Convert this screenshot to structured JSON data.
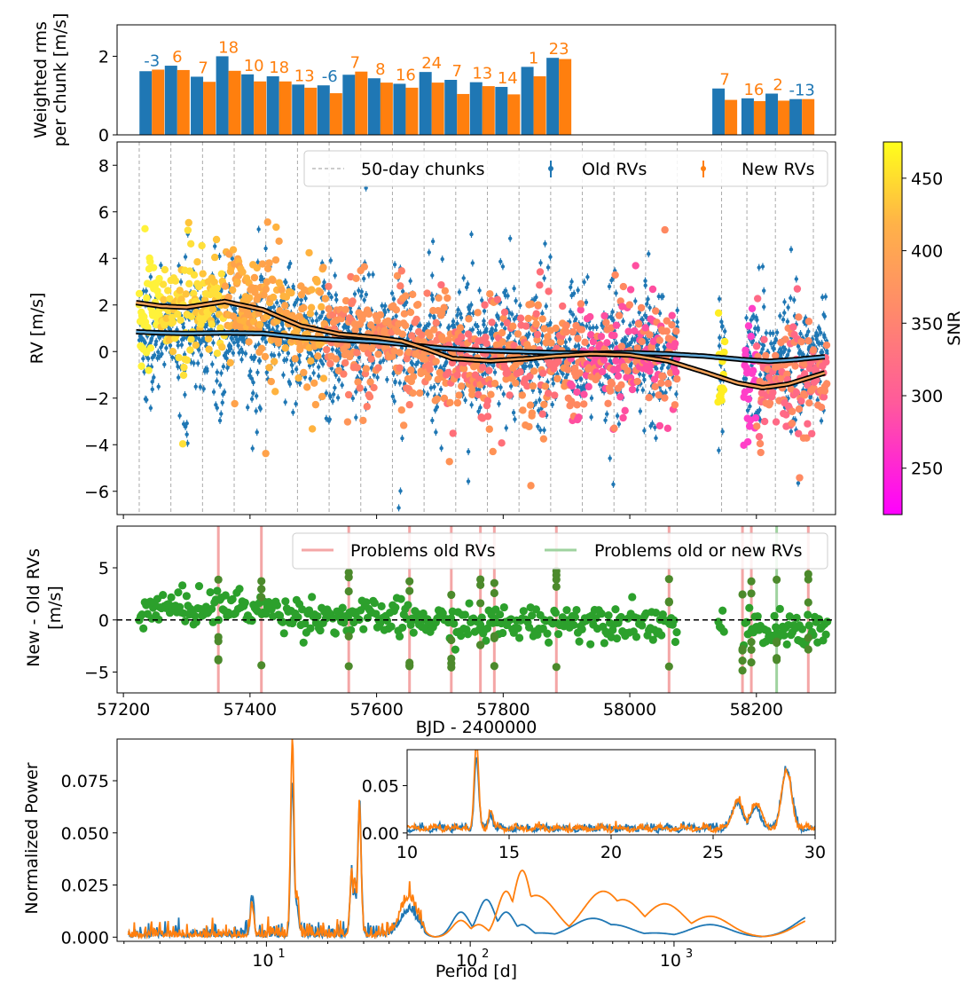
{
  "chart_data": [
    {
      "id": "rms",
      "type": "bar",
      "ylabel": [
        "Weighted rms",
        "per chunk [m/s]"
      ],
      "ylim": [
        0,
        2.8
      ],
      "yticks": [
        0,
        2
      ],
      "xlim": [
        57190,
        58325
      ],
      "series": [
        {
          "name": "Old RVs",
          "color": "#1f77b4"
        },
        {
          "name": "New RVs",
          "color": "#ff7f0e"
        }
      ],
      "chunks": [
        {
          "x": 57245,
          "old": 1.62,
          "new": 1.66,
          "label": "-3",
          "label_color": "#1f77b4"
        },
        {
          "x": 57285,
          "old": 1.76,
          "new": 1.65,
          "label": "6",
          "label_color": "#ff7f0e"
        },
        {
          "x": 57326,
          "old": 1.48,
          "new": 1.35,
          "label": "7",
          "label_color": "#ff7f0e"
        },
        {
          "x": 57366,
          "old": 2.0,
          "new": 1.63,
          "label": "18",
          "label_color": "#ff7f0e"
        },
        {
          "x": 57406,
          "old": 1.54,
          "new": 1.36,
          "label": "10",
          "label_color": "#ff7f0e"
        },
        {
          "x": 57446,
          "old": 1.49,
          "new": 1.36,
          "label": "18",
          "label_color": "#ff7f0e"
        },
        {
          "x": 57486,
          "old": 1.28,
          "new": 1.2,
          "label": "13",
          "label_color": "#ff7f0e"
        },
        {
          "x": 57526,
          "old": 1.26,
          "new": 1.06,
          "label": "-6",
          "label_color": "#1f77b4"
        },
        {
          "x": 57566,
          "old": 1.53,
          "new": 1.61,
          "label": "7",
          "label_color": "#ff7f0e"
        },
        {
          "x": 57606,
          "old": 1.44,
          "new": 1.33,
          "label": "8",
          "label_color": "#ff7f0e"
        },
        {
          "x": 57646,
          "old": 1.3,
          "new": 1.2,
          "label": "16",
          "label_color": "#ff7f0e"
        },
        {
          "x": 57687,
          "old": 1.6,
          "new": 1.33,
          "label": "24",
          "label_color": "#ff7f0e"
        },
        {
          "x": 57727,
          "old": 1.4,
          "new": 1.04,
          "label": "7",
          "label_color": "#ff7f0e"
        },
        {
          "x": 57767,
          "old": 1.34,
          "new": 1.24,
          "label": "13",
          "label_color": "#ff7f0e"
        },
        {
          "x": 57807,
          "old": 1.22,
          "new": 1.03,
          "label": "14",
          "label_color": "#ff7f0e"
        },
        {
          "x": 57848,
          "old": 1.73,
          "new": 1.49,
          "label": "1",
          "label_color": "#ff7f0e"
        },
        {
          "x": 57888,
          "old": 1.96,
          "new": 1.93,
          "label": "23",
          "label_color": "#ff7f0e"
        },
        {
          "x": 58150,
          "old": 1.18,
          "new": 0.89,
          "label": "7",
          "label_color": "#ff7f0e"
        },
        {
          "x": 58196,
          "old": 0.93,
          "new": 0.86,
          "label": "16",
          "label_color": "#ff7f0e"
        },
        {
          "x": 58234,
          "old": 1.05,
          "new": 0.87,
          "label": "2",
          "label_color": "#ff7f0e"
        },
        {
          "x": 58272,
          "old": 0.91,
          "new": 0.91,
          "label": "-13",
          "label_color": "#1f77b4"
        }
      ]
    },
    {
      "id": "rv",
      "type": "scatter",
      "ylabel": "RV [m/s]",
      "xlim": [
        57190,
        58325
      ],
      "ylim": [
        -7,
        9
      ],
      "yticks": [
        -6,
        -4,
        -2,
        0,
        2,
        4,
        6,
        8
      ],
      "legend": [
        "50-day chunks",
        "Old RVs",
        "New RVs"
      ],
      "legend_position": "upper-right",
      "chunk_boundaries": [
        57225,
        57275,
        57325,
        57375,
        57425,
        57475,
        57525,
        57575,
        57625,
        57675,
        57725,
        57775,
        57825,
        57875,
        57925,
        57975,
        58025,
        58075,
        58145,
        58185,
        58230,
        58290
      ],
      "old_trend": [
        [
          57220,
          0.85
        ],
        [
          57260,
          0.8
        ],
        [
          57300,
          0.78
        ],
        [
          57360,
          0.8
        ],
        [
          57420,
          0.78
        ],
        [
          57480,
          0.6
        ],
        [
          57540,
          0.5
        ],
        [
          57600,
          0.42
        ],
        [
          57650,
          0.3
        ],
        [
          57700,
          0.15
        ],
        [
          57760,
          0.05
        ],
        [
          57820,
          0.0
        ],
        [
          57880,
          -0.05
        ],
        [
          57940,
          -0.08
        ],
        [
          58000,
          -0.05
        ],
        [
          58060,
          -0.1
        ],
        [
          58120,
          -0.2
        ],
        [
          58180,
          -0.35
        ],
        [
          58220,
          -0.42
        ],
        [
          58260,
          -0.35
        ],
        [
          58310,
          -0.22
        ]
      ],
      "new_trend": [
        [
          57220,
          2.1
        ],
        [
          57260,
          1.95
        ],
        [
          57300,
          1.9
        ],
        [
          57360,
          2.15
        ],
        [
          57420,
          1.8
        ],
        [
          57480,
          1.1
        ],
        [
          57540,
          0.75
        ],
        [
          57600,
          0.6
        ],
        [
          57640,
          0.45
        ],
        [
          57680,
          0.1
        ],
        [
          57720,
          -0.3
        ],
        [
          57780,
          -0.4
        ],
        [
          57840,
          -0.3
        ],
        [
          57880,
          -0.2
        ],
        [
          57940,
          -0.1
        ],
        [
          58000,
          -0.15
        ],
        [
          58060,
          -0.4
        ],
        [
          58120,
          -0.9
        ],
        [
          58170,
          -1.35
        ],
        [
          58210,
          -1.55
        ],
        [
          58250,
          -1.4
        ],
        [
          58310,
          -0.9
        ]
      ],
      "colorbar": {
        "label": "SNR",
        "ticks": [
          250,
          300,
          350,
          400,
          450
        ],
        "range": [
          218,
          475
        ]
      }
    },
    {
      "id": "diff",
      "type": "scatter",
      "ylabel": [
        "New - Old RVs",
        "[m/s]"
      ],
      "xlabel": "BJD - 2400000",
      "xlim": [
        57190,
        58325
      ],
      "ylim": [
        -7,
        9
      ],
      "yticks": [
        -5,
        0,
        5
      ],
      "xticks": [
        57200,
        57400,
        57600,
        57800,
        58000,
        58200
      ],
      "legend": [
        "Problems old RVs",
        "Problems old or new RVs"
      ],
      "legend_position": "upper-right",
      "problem_old_rvs": [
        57350,
        57418,
        57556,
        57652,
        57718,
        57764,
        57786,
        57884,
        58062,
        58178,
        58192,
        58282
      ],
      "problem_old_or_new_rvs": [
        58232
      ]
    },
    {
      "id": "periodogram",
      "type": "line",
      "ylabel": "Normalized Power",
      "xlabel": "Period [d]",
      "xscale": "log",
      "xlim": [
        1.85,
        6200
      ],
      "ylim": [
        -0.002,
        0.095
      ],
      "yticks": [
        0.0,
        0.025,
        0.05,
        0.075
      ],
      "ytick_labels": [
        "0.000",
        "0.025",
        "0.050",
        "0.075"
      ],
      "xtick_labels": [
        "10",
        "10",
        "10"
      ],
      "xtick_exponents": [
        "1",
        "2",
        "3"
      ],
      "series": [
        {
          "name": "Old RVs",
          "color": "#1f77b4",
          "peaks": [
            [
              8.5,
              0.018
            ],
            [
              13.4,
              0.074
            ],
            [
              14.1,
              0.015
            ],
            [
              26.2,
              0.028
            ],
            [
              27.1,
              0.022
            ],
            [
              28.6,
              0.063
            ],
            [
              50,
              0.012
            ],
            [
              90,
              0.012
            ],
            [
              120,
              0.018
            ],
            [
              150,
              0.012
            ],
            [
              180,
              0.006
            ],
            [
              220,
              0.002
            ],
            [
              300,
              0.001
            ],
            [
              400,
              0.009
            ],
            [
              500,
              0.006
            ],
            [
              800,
              0.002
            ],
            [
              1500,
              0.006
            ],
            [
              5000,
              0.011
            ]
          ]
        },
        {
          "name": "New RVs",
          "color": "#ff7f0e",
          "peaks": [
            [
              8.5,
              0.014
            ],
            [
              13.4,
              0.092
            ],
            [
              14.1,
              0.02
            ],
            [
              26.2,
              0.03
            ],
            [
              27.1,
              0.028
            ],
            [
              28.6,
              0.06
            ],
            [
              50,
              0.018
            ],
            [
              90,
              0.008
            ],
            [
              110,
              0.006
            ],
            [
              150,
              0.022
            ],
            [
              180,
              0.032
            ],
            [
              210,
              0.02
            ],
            [
              280,
              0.004
            ],
            [
              330,
              0.002
            ],
            [
              450,
              0.022
            ],
            [
              560,
              0.018
            ],
            [
              900,
              0.016
            ],
            [
              1500,
              0.01
            ],
            [
              5000,
              0.009
            ]
          ]
        }
      ],
      "inset": {
        "xlim": [
          10,
          30
        ],
        "xticks": [
          10,
          15,
          20,
          25,
          30
        ],
        "ylim": [
          -0.002,
          0.088
        ],
        "yticks": [
          0.0,
          0.05
        ],
        "ytick_labels": [
          "0.00",
          "0.05"
        ]
      }
    }
  ]
}
